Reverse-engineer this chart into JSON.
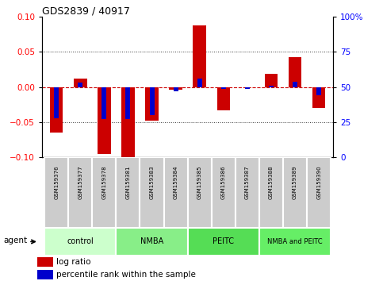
{
  "title": "GDS2839 / 40917",
  "samples": [
    "GSM159376",
    "GSM159377",
    "GSM159378",
    "GSM159381",
    "GSM159383",
    "GSM159384",
    "GSM159385",
    "GSM159386",
    "GSM159387",
    "GSM159388",
    "GSM159389",
    "GSM159390"
  ],
  "log_ratio": [
    -0.065,
    0.012,
    -0.095,
    -0.1,
    -0.048,
    -0.004,
    0.088,
    -0.033,
    0.0,
    0.019,
    0.043,
    -0.03
  ],
  "percentile_rank_pct": [
    28,
    53,
    27,
    27,
    30,
    47,
    56,
    49,
    49,
    51,
    54,
    44
  ],
  "ylim_left": [
    -0.1,
    0.1
  ],
  "ylim_right": [
    0,
    100
  ],
  "yticks_left": [
    -0.1,
    -0.05,
    0.0,
    0.05,
    0.1
  ],
  "yticks_right": [
    0,
    25,
    50,
    75,
    100
  ],
  "log_ratio_color": "#cc0000",
  "percentile_color": "#0000cc",
  "zero_line_color": "#cc0000",
  "dotted_line_color": "#333333",
  "groups": [
    {
      "label": "control",
      "start": 0,
      "end": 2
    },
    {
      "label": "NMBA",
      "start": 3,
      "end": 5
    },
    {
      "label": "PEITC",
      "start": 6,
      "end": 8
    },
    {
      "label": "NMBA and PEITC",
      "start": 9,
      "end": 11
    }
  ],
  "group_colors": [
    "#ccffcc",
    "#88ee88",
    "#55dd55",
    "#66ee66"
  ],
  "sample_box_color": "#cccccc",
  "legend_log_ratio": "log ratio",
  "legend_percentile": "percentile rank within the sample"
}
